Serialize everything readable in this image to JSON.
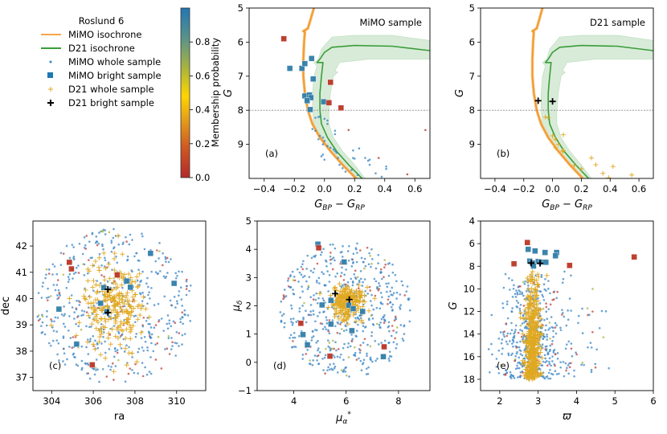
{
  "figure": {
    "legend": {
      "title": "Roslund 6",
      "entries": [
        {
          "label": "MiMO isochrone",
          "kind": "line",
          "color": "#f7a64a"
        },
        {
          "label": "D21 isochrone",
          "kind": "line",
          "color": "#3a9d3a"
        },
        {
          "label": "MiMO whole sample",
          "kind": "dot",
          "color": "#3a86c6"
        },
        {
          "label": "MiMO bright sample",
          "kind": "square",
          "color": "#1f77b4"
        },
        {
          "label": "D21 whole sample",
          "kind": "plus",
          "color": "#e0a820"
        },
        {
          "label": "D21 bright sample",
          "kind": "plus-bold",
          "color": "#000000"
        }
      ]
    },
    "colorbar": {
      "label": "Membership probability",
      "ticks": [
        "0.0",
        "0.2",
        "0.4",
        "0.6",
        "0.8"
      ],
      "tick_values": [
        0.0,
        0.2,
        0.4,
        0.6,
        0.8
      ],
      "range": [
        0,
        1
      ],
      "colors": [
        "#b22a2a",
        "#d2691e",
        "#e8a317",
        "#ffd700",
        "#9ab24a",
        "#4a8fa8",
        "#2176b5"
      ]
    }
  },
  "chart_data": [
    {
      "id": "a",
      "type": "scatter",
      "tag": "(a)",
      "annotation": "MiMO sample",
      "xlabel": "G_BP − G_RP",
      "ylabel": "G",
      "xlim": [
        -0.5,
        0.7
      ],
      "ylim": [
        10.0,
        5.0
      ],
      "xticks": [
        -0.4,
        -0.2,
        0.0,
        0.2,
        0.4,
        0.6
      ],
      "xtick_labels": [
        "−0.4",
        "−0.2",
        "0.0",
        "0.2",
        "0.4",
        "0.6"
      ],
      "yticks": [
        5,
        6,
        7,
        8,
        9
      ],
      "ytick_labels": [
        "5",
        "6",
        "7",
        "8",
        "9"
      ],
      "hline": 8,
      "isochrones": {
        "mimo": [
          [
            0.21,
            10.0
          ],
          [
            0.12,
            9.6
          ],
          [
            0.04,
            9.2
          ],
          [
            -0.03,
            8.8
          ],
          [
            -0.08,
            8.4
          ],
          [
            -0.11,
            8.0
          ],
          [
            -0.13,
            7.5
          ],
          [
            -0.14,
            7.0
          ],
          [
            -0.14,
            6.5
          ],
          [
            -0.135,
            6.0
          ],
          [
            -0.13,
            5.7
          ],
          [
            -0.14,
            5.68
          ],
          [
            -0.11,
            5.6
          ],
          [
            -0.09,
            5.3
          ],
          [
            -0.07,
            5.0
          ]
        ],
        "d21": [
          [
            0.25,
            10.0
          ],
          [
            0.16,
            9.6
          ],
          [
            0.08,
            9.2
          ],
          [
            0.02,
            8.8
          ],
          [
            -0.02,
            8.4
          ],
          [
            -0.03,
            8.0
          ],
          [
            -0.03,
            7.5
          ],
          [
            -0.02,
            7.0
          ],
          [
            -0.01,
            6.6
          ],
          [
            -0.05,
            6.6
          ],
          [
            -0.03,
            6.5
          ],
          [
            0.0,
            6.3
          ],
          [
            0.05,
            6.15
          ],
          [
            0.2,
            6.1
          ],
          [
            0.45,
            6.12
          ],
          [
            0.7,
            6.25
          ]
        ],
        "d21_band_upper": [
          [
            0.27,
            10.0
          ],
          [
            0.2,
            9.6
          ],
          [
            0.12,
            9.2
          ],
          [
            0.06,
            8.8
          ],
          [
            0.03,
            8.4
          ],
          [
            0.03,
            8.0
          ],
          [
            0.04,
            7.5
          ],
          [
            0.06,
            7.0
          ],
          [
            0.09,
            6.88
          ],
          [
            0.07,
            6.85
          ],
          [
            0.1,
            6.6
          ],
          [
            0.3,
            6.5
          ],
          [
            0.7,
            6.5
          ]
        ],
        "d21_band_lower": [
          [
            0.22,
            10.0
          ],
          [
            0.12,
            9.6
          ],
          [
            0.04,
            9.2
          ],
          [
            -0.02,
            8.8
          ],
          [
            -0.07,
            8.4
          ],
          [
            -0.08,
            8.0
          ],
          [
            -0.08,
            7.5
          ],
          [
            -0.07,
            7.0
          ],
          [
            -0.05,
            6.7
          ],
          [
            -0.07,
            6.6
          ],
          [
            -0.04,
            6.5
          ],
          [
            -0.02,
            6.2
          ],
          [
            0.05,
            5.85
          ],
          [
            0.2,
            5.8
          ],
          [
            0.45,
            5.8
          ],
          [
            0.7,
            5.95
          ]
        ]
      },
      "bright_squares": [
        {
          "x": -0.27,
          "y": 5.9,
          "p": 0.05
        },
        {
          "x": -0.23,
          "y": 6.77,
          "p": 0.95
        },
        {
          "x": -0.15,
          "y": 6.77,
          "p": 0.95
        },
        {
          "x": -0.13,
          "y": 6.63,
          "p": 0.95
        },
        {
          "x": -0.085,
          "y": 6.48,
          "p": 0.95
        },
        {
          "x": -0.075,
          "y": 7.08,
          "p": 0.95
        },
        {
          "x": -0.13,
          "y": 7.58,
          "p": 0.95
        },
        {
          "x": -0.1,
          "y": 7.55,
          "p": 0.95
        },
        {
          "x": -0.09,
          "y": 7.63,
          "p": 0.95
        },
        {
          "x": -0.115,
          "y": 7.72,
          "p": 0.95
        },
        {
          "x": -0.095,
          "y": 7.98,
          "p": 0.95
        },
        {
          "x": -0.005,
          "y": 7.75,
          "p": 0.95
        },
        {
          "x": 0.04,
          "y": 7.18,
          "p": 0.05
        },
        {
          "x": 0.03,
          "y": 7.78,
          "p": 0.05
        },
        {
          "x": 0.11,
          "y": 7.93,
          "p": 0.05
        }
      ],
      "whole_dots": [
        [
          -0.03,
          8.18
        ],
        [
          -0.04,
          8.2
        ],
        [
          -0.06,
          8.22
        ],
        [
          0.0,
          8.25
        ],
        [
          0.02,
          8.3
        ],
        [
          0.02,
          8.4
        ],
        [
          -0.08,
          8.55
        ],
        [
          -0.06,
          8.6
        ],
        [
          0.07,
          8.6
        ],
        [
          0.07,
          8.7
        ],
        [
          -0.03,
          8.75
        ],
        [
          -0.01,
          8.8
        ],
        [
          -0.04,
          8.85
        ],
        [
          0.0,
          8.9
        ],
        [
          -0.01,
          9.0
        ],
        [
          0.02,
          9.05
        ],
        [
          0.04,
          9.1
        ],
        [
          0.06,
          9.15
        ],
        [
          0.07,
          9.2
        ],
        [
          0.08,
          9.25
        ],
        [
          0.19,
          9.18
        ],
        [
          0.23,
          9.12
        ],
        [
          -0.01,
          9.3
        ],
        [
          -0.02,
          9.35
        ],
        [
          0.0,
          9.45
        ],
        [
          0.09,
          9.4
        ],
        [
          0.19,
          9.4
        ],
        [
          0.2,
          9.42
        ],
        [
          0.27,
          9.4
        ],
        [
          0.3,
          9.45
        ],
        [
          0.29,
          9.48
        ],
        [
          0.3,
          9.6
        ],
        [
          0.12,
          9.7
        ],
        [
          0.18,
          9.75
        ],
        [
          0.41,
          9.65
        ],
        [
          0.41,
          9.72
        ],
        [
          0.34,
          9.85
        ],
        [
          0.22,
          9.9
        ],
        [
          0.38,
          9.95
        ],
        [
          0.14,
          9.8
        ],
        [
          0.1,
          9.6
        ]
      ],
      "whole_dots_red": [
        [
          0.16,
          8.58
        ],
        [
          0.67,
          8.58
        ],
        [
          0.36,
          9.4
        ],
        [
          0.55,
          9.88
        ]
      ]
    },
    {
      "id": "b",
      "type": "scatter",
      "tag": "(b)",
      "annotation": "D21 sample",
      "xlabel": "G_BP − G_RP",
      "ylabel": "G",
      "xlim": [
        -0.5,
        0.7
      ],
      "ylim": [
        10.0,
        5.0
      ],
      "xticks": [
        -0.4,
        -0.2,
        0.0,
        0.2,
        0.4,
        0.6
      ],
      "xtick_labels": [
        "−0.4",
        "−0.2",
        "0.0",
        "0.2",
        "0.4",
        "0.6"
      ],
      "yticks": [
        5,
        6,
        7,
        8,
        9
      ],
      "ytick_labels": [
        "5",
        "6",
        "7",
        "8",
        "9"
      ],
      "hline": 8,
      "bright_plus": [
        [
          -0.1,
          7.72
        ],
        [
          0.0,
          7.74
        ]
      ],
      "whole_plus": [
        [
          -0.05,
          8.2
        ],
        [
          -0.03,
          8.22
        ],
        [
          0.0,
          8.75
        ],
        [
          0.02,
          8.85
        ],
        [
          0.075,
          8.72
        ],
        [
          0.04,
          9.0
        ],
        [
          0.02,
          9.1
        ],
        [
          0.07,
          9.2
        ],
        [
          0.075,
          9.18
        ],
        [
          0.15,
          9.62
        ],
        [
          0.2,
          9.72
        ],
        [
          0.27,
          9.4
        ],
        [
          0.3,
          9.6
        ],
        [
          0.35,
          9.85
        ],
        [
          0.42,
          9.65
        ],
        [
          0.39,
          9.98
        ],
        [
          0.55,
          9.9
        ]
      ]
    },
    {
      "id": "c",
      "type": "scatter",
      "tag": "(c)",
      "xlabel": "ra",
      "ylabel": "dec",
      "xlim": [
        303.1,
        311.4
      ],
      "ylim": [
        36.5,
        42.95
      ],
      "xticks": [
        304,
        306,
        308,
        310
      ],
      "xtick_labels": [
        "304",
        "306",
        "308",
        "310"
      ],
      "yticks": [
        37,
        38,
        39,
        40,
        41,
        42
      ],
      "ytick_labels": [
        "37",
        "38",
        "39",
        "40",
        "41",
        "42"
      ],
      "center": [
        307.0,
        39.7
      ],
      "bright_squares": [
        {
          "x": 304.85,
          "y": 41.38,
          "p": 0.05
        },
        {
          "x": 304.95,
          "y": 41.13,
          "p": 0.05
        },
        {
          "x": 307.15,
          "y": 40.9,
          "p": 0.05
        },
        {
          "x": 305.95,
          "y": 37.48,
          "p": 0.05
        },
        {
          "x": 308.75,
          "y": 41.72,
          "p": 0.95
        },
        {
          "x": 307.6,
          "y": 40.67,
          "p": 0.95
        },
        {
          "x": 307.78,
          "y": 40.43,
          "p": 0.95
        },
        {
          "x": 309.88,
          "y": 40.58,
          "p": 0.95
        },
        {
          "x": 306.5,
          "y": 40.42,
          "p": 0.95
        },
        {
          "x": 306.35,
          "y": 39.82,
          "p": 0.95
        },
        {
          "x": 304.35,
          "y": 39.6,
          "p": 0.95
        },
        {
          "x": 305.2,
          "y": 38.27,
          "p": 0.95
        },
        {
          "x": 306.65,
          "y": 39.5,
          "p": 0.95
        }
      ],
      "bright_plus": [
        [
          306.7,
          40.35
        ],
        [
          306.7,
          39.47
        ]
      ]
    },
    {
      "id": "d",
      "type": "scatter",
      "tag": "(d)",
      "xlabel": "μα*",
      "ylabel": "μδ",
      "xlim": [
        2.6,
        9.2
      ],
      "ylim": [
        -1,
        5
      ],
      "xticks": [
        4,
        6,
        8
      ],
      "xtick_labels": [
        "4",
        "6",
        "8"
      ],
      "yticks": [
        -1,
        0,
        1,
        2,
        3,
        4,
        5
      ],
      "ytick_labels": [
        "−1",
        "0",
        "1",
        "2",
        "3",
        "4",
        "5"
      ],
      "center": [
        6.0,
        2.1
      ],
      "bright_squares": [
        {
          "x": 4.92,
          "y": 4.18,
          "p": 0.95
        },
        {
          "x": 4.95,
          "y": 4.05,
          "p": 0.05
        },
        {
          "x": 5.92,
          "y": 3.55,
          "p": 0.95
        },
        {
          "x": 5.08,
          "y": 2.03,
          "p": 0.95
        },
        {
          "x": 5.42,
          "y": 2.19,
          "p": 0.95
        },
        {
          "x": 6.1,
          "y": 2.02,
          "p": 0.95
        },
        {
          "x": 6.27,
          "y": 1.9,
          "p": 0.95
        },
        {
          "x": 6.63,
          "y": 1.8,
          "p": 0.95
        },
        {
          "x": 5.42,
          "y": 1.35,
          "p": 0.95
        },
        {
          "x": 6.22,
          "y": 1.12,
          "p": 0.95
        },
        {
          "x": 4.27,
          "y": 1.38,
          "p": 0.05
        },
        {
          "x": 4.35,
          "y": 0.98,
          "p": 0.95
        },
        {
          "x": 4.52,
          "y": 0.62,
          "p": 0.95
        },
        {
          "x": 5.38,
          "y": 0.22,
          "p": 0.05
        },
        {
          "x": 7.45,
          "y": 0.55,
          "p": 0.05
        },
        {
          "x": 7.42,
          "y": 0.2,
          "p": 0.95
        }
      ],
      "bright_plus": [
        [
          5.58,
          2.43
        ],
        [
          6.12,
          2.22
        ]
      ]
    },
    {
      "id": "e",
      "type": "scatter",
      "tag": "(e)",
      "xlabel": "ϖ",
      "ylabel": "G",
      "xlim": [
        1.5,
        6.0
      ],
      "ylim": [
        19.0,
        4.0
      ],
      "xticks": [
        2,
        3,
        4,
        5,
        6
      ],
      "xtick_labels": [
        "2",
        "3",
        "4",
        "5",
        "6"
      ],
      "yticks": [
        4,
        6,
        8,
        10,
        12,
        14,
        16,
        18
      ],
      "ytick_labels": [
        "4",
        "6",
        "8",
        "10",
        "12",
        "14",
        "16",
        "18"
      ],
      "bright_squares": [
        {
          "x": 2.72,
          "y": 5.9,
          "p": 0.05
        },
        {
          "x": 2.74,
          "y": 6.5,
          "p": 0.95
        },
        {
          "x": 2.92,
          "y": 6.65,
          "p": 0.95
        },
        {
          "x": 3.18,
          "y": 6.78,
          "p": 0.95
        },
        {
          "x": 3.48,
          "y": 6.78,
          "p": 0.95
        },
        {
          "x": 3.45,
          "y": 7.08,
          "p": 0.95
        },
        {
          "x": 2.78,
          "y": 7.55,
          "p": 0.95
        },
        {
          "x": 3.0,
          "y": 7.58,
          "p": 0.95
        },
        {
          "x": 3.08,
          "y": 7.63,
          "p": 0.95
        },
        {
          "x": 3.2,
          "y": 7.65,
          "p": 0.95
        },
        {
          "x": 2.85,
          "y": 7.72,
          "p": 0.95
        },
        {
          "x": 2.88,
          "y": 7.98,
          "p": 0.95
        },
        {
          "x": 2.37,
          "y": 7.78,
          "p": 0.05
        },
        {
          "x": 3.82,
          "y": 7.93,
          "p": 0.05
        },
        {
          "x": 5.5,
          "y": 7.18,
          "p": 0.05
        }
      ],
      "bright_plus": [
        [
          2.82,
          7.72
        ],
        [
          3.05,
          7.74
        ]
      ]
    }
  ]
}
